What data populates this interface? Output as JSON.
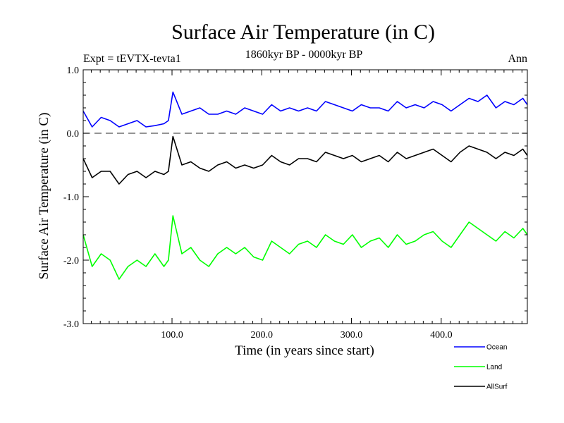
{
  "chart_data": {
    "type": "line",
    "title": "Surface Air Temperature (in C)",
    "subtitle": "1860kyr BP - 0000kyr BP",
    "left_annotation": "Expt = tEVTX-tevta1",
    "right_annotation": "Ann",
    "xlabel": "Time (in years since start)",
    "ylabel": "Surface Air Temperature (in C)",
    "xlim": [
      1,
      496
    ],
    "ylim": [
      -3.0,
      1.0
    ],
    "xticks": [
      100,
      200,
      300,
      400
    ],
    "xtick_labels": [
      "100.0",
      "200.0",
      "300.0",
      "400.0"
    ],
    "yticks": [
      1.0,
      0.0,
      -1.0,
      -2.0,
      -3.0
    ],
    "ytick_labels": [
      "1.0",
      "0.0",
      "-1.0",
      "-2.0",
      "-3.0"
    ],
    "reference_line": 0.0,
    "series": [
      {
        "name": "Ocean",
        "color": "#0000ff",
        "x": [
          1,
          11,
          21,
          31,
          41,
          51,
          61,
          71,
          81,
          91,
          96,
          101,
          111,
          121,
          131,
          141,
          151,
          161,
          171,
          181,
          191,
          201,
          211,
          221,
          231,
          241,
          251,
          261,
          271,
          281,
          291,
          301,
          311,
          321,
          331,
          341,
          351,
          361,
          371,
          381,
          391,
          401,
          411,
          421,
          431,
          441,
          451,
          461,
          471,
          481,
          491,
          496
        ],
        "values": [
          0.35,
          0.1,
          0.25,
          0.2,
          0.1,
          0.15,
          0.2,
          0.1,
          0.12,
          0.15,
          0.2,
          0.65,
          0.3,
          0.35,
          0.4,
          0.3,
          0.3,
          0.35,
          0.3,
          0.4,
          0.35,
          0.3,
          0.45,
          0.35,
          0.4,
          0.35,
          0.4,
          0.35,
          0.5,
          0.45,
          0.4,
          0.35,
          0.45,
          0.4,
          0.4,
          0.35,
          0.5,
          0.4,
          0.45,
          0.4,
          0.5,
          0.45,
          0.35,
          0.45,
          0.55,
          0.5,
          0.6,
          0.4,
          0.5,
          0.45,
          0.55,
          0.45
        ]
      },
      {
        "name": "Land",
        "color": "#00ff00",
        "x": [
          1,
          11,
          21,
          31,
          41,
          51,
          61,
          71,
          81,
          91,
          96,
          101,
          111,
          121,
          131,
          141,
          151,
          161,
          171,
          181,
          191,
          201,
          211,
          221,
          231,
          241,
          251,
          261,
          271,
          281,
          291,
          301,
          311,
          321,
          331,
          341,
          351,
          361,
          371,
          381,
          391,
          401,
          411,
          421,
          431,
          441,
          451,
          461,
          471,
          481,
          491,
          496
        ],
        "values": [
          -1.6,
          -2.1,
          -1.9,
          -2.0,
          -2.3,
          -2.1,
          -2.0,
          -2.1,
          -1.9,
          -2.1,
          -2.0,
          -1.3,
          -1.9,
          -1.8,
          -2.0,
          -2.1,
          -1.9,
          -1.8,
          -1.9,
          -1.8,
          -1.95,
          -2.0,
          -1.7,
          -1.8,
          -1.9,
          -1.75,
          -1.7,
          -1.8,
          -1.6,
          -1.7,
          -1.75,
          -1.6,
          -1.8,
          -1.7,
          -1.65,
          -1.8,
          -1.6,
          -1.75,
          -1.7,
          -1.6,
          -1.55,
          -1.7,
          -1.8,
          -1.6,
          -1.4,
          -1.5,
          -1.6,
          -1.7,
          -1.55,
          -1.65,
          -1.5,
          -1.6
        ]
      },
      {
        "name": "AllSurf",
        "color": "#000000",
        "x": [
          1,
          11,
          21,
          31,
          41,
          51,
          61,
          71,
          81,
          91,
          96,
          101,
          111,
          121,
          131,
          141,
          151,
          161,
          171,
          181,
          191,
          201,
          211,
          221,
          231,
          241,
          251,
          261,
          271,
          281,
          291,
          301,
          311,
          321,
          331,
          341,
          351,
          361,
          371,
          381,
          391,
          401,
          411,
          421,
          431,
          441,
          451,
          461,
          471,
          481,
          491,
          496
        ],
        "values": [
          -0.4,
          -0.7,
          -0.6,
          -0.6,
          -0.8,
          -0.65,
          -0.6,
          -0.7,
          -0.6,
          -0.65,
          -0.6,
          -0.05,
          -0.5,
          -0.45,
          -0.55,
          -0.6,
          -0.5,
          -0.45,
          -0.55,
          -0.5,
          -0.55,
          -0.5,
          -0.35,
          -0.45,
          -0.5,
          -0.4,
          -0.4,
          -0.45,
          -0.3,
          -0.35,
          -0.4,
          -0.35,
          -0.45,
          -0.4,
          -0.35,
          -0.45,
          -0.3,
          -0.4,
          -0.35,
          -0.3,
          -0.25,
          -0.35,
          -0.45,
          -0.3,
          -0.2,
          -0.25,
          -0.3,
          -0.4,
          -0.3,
          -0.35,
          -0.25,
          -0.35
        ]
      }
    ]
  }
}
